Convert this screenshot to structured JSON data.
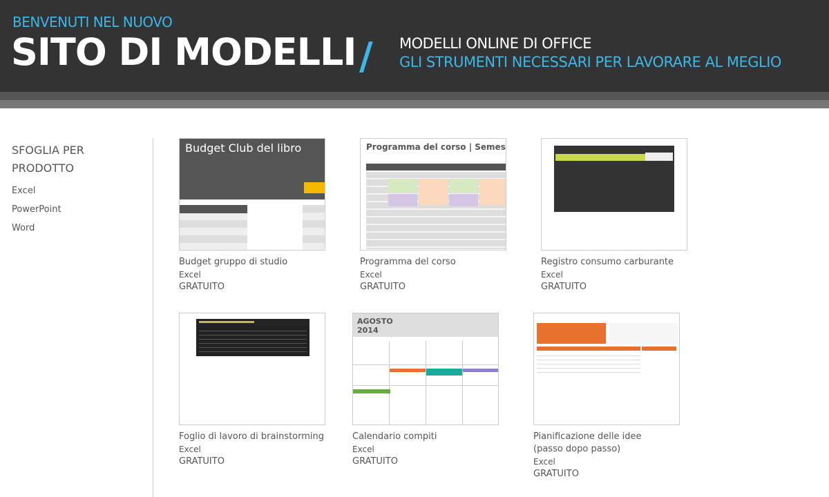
{
  "header": {
    "welcome": "BENVENUTI NEL NUOVO",
    "title": "SITO DI MODELLI",
    "slash": "/",
    "subtitle1": "MODELLI ONLINE DI OFFICE",
    "subtitle2": "GLI STRUMENTI NECESSARI PER LAVORARE AL MEGLIO"
  },
  "sidebar": {
    "heading": "SFOGLIA PER PRODOTTO",
    "items": [
      {
        "label": "Excel"
      },
      {
        "label": "PowerPoint"
      },
      {
        "label": "Word"
      }
    ]
  },
  "templates": [
    {
      "title": "Budget gruppo di studio",
      "product": "Excel",
      "price": "GRATUITO",
      "thumb_text": "Budget Club del libro"
    },
    {
      "title": "Programma del corso",
      "product": "Excel",
      "price": "GRATUITO",
      "thumb_text": "Programma del corso | Semestre a"
    },
    {
      "title": "Registro consumo carburante",
      "product": "Excel",
      "price": "GRATUITO"
    },
    {
      "title": "Foglio di lavoro di brainstorming",
      "product": "Excel",
      "price": "GRATUITO"
    },
    {
      "title": "Calendario compiti",
      "product": "Excel",
      "price": "GRATUITO",
      "thumb_text": "AGOSTO 2014"
    },
    {
      "title": "Pianificazione delle idee (passo dopo passo)",
      "product": "Excel",
      "price": "GRATUITO"
    }
  ],
  "colors": {
    "accent": "#3db6e8",
    "header": "#333333"
  }
}
